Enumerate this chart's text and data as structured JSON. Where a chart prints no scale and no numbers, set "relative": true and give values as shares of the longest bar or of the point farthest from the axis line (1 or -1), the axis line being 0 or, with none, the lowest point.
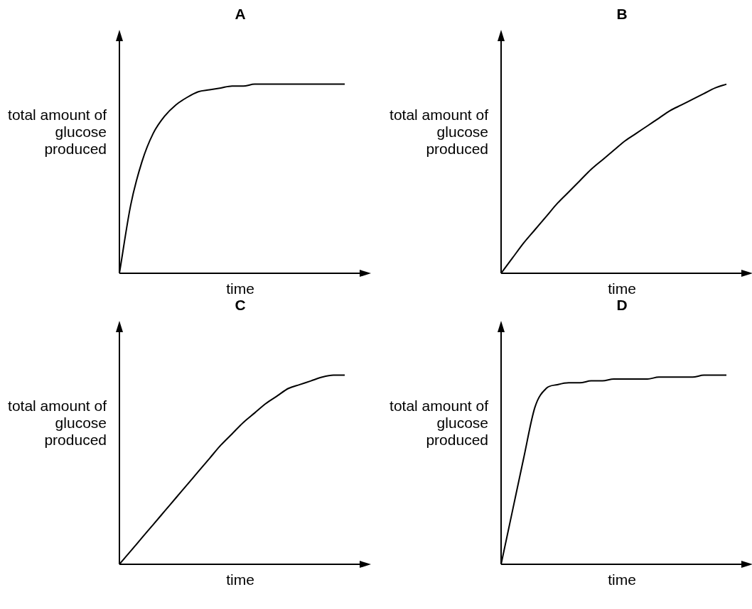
{
  "chart_data": [
    {
      "type": "line",
      "title": "A",
      "xlabel": "time",
      "ylabel": "total amount of glucose produced",
      "relative": true,
      "categories": [
        null,
        null,
        null,
        null,
        null,
        null,
        null,
        null,
        null,
        null,
        null,
        null,
        null,
        null,
        null,
        null,
        null,
        null,
        null,
        null,
        null
      ],
      "series": [
        {
          "color": "#000000",
          "values": [
            0,
            0.36,
            0.59,
            0.74,
            0.83,
            0.89,
            0.93,
            0.96,
            0.97,
            0.98,
            0.99,
            0.99,
            1,
            1,
            1,
            1,
            1,
            1,
            1,
            1,
            1
          ]
        }
      ]
    },
    {
      "type": "line",
      "title": "B",
      "xlabel": "time",
      "ylabel": "total amount of glucose produced",
      "relative": true,
      "categories": [
        null,
        null,
        null,
        null,
        null,
        null,
        null,
        null,
        null,
        null,
        null,
        null,
        null,
        null,
        null,
        null,
        null,
        null,
        null,
        null,
        null
      ],
      "series": [
        {
          "color": "#000000",
          "values": [
            0,
            0.08,
            0.16,
            0.23,
            0.3,
            0.37,
            0.43,
            0.49,
            0.55,
            0.6,
            0.65,
            0.7,
            0.74,
            0.78,
            0.82,
            0.86,
            0.89,
            0.92,
            0.95,
            0.98,
            1
          ]
        }
      ]
    },
    {
      "type": "line",
      "title": "C",
      "xlabel": "time",
      "ylabel": "total amount of glucose produced",
      "relative": true,
      "categories": [
        null,
        null,
        null,
        null,
        null,
        null,
        null,
        null,
        null,
        null,
        null,
        null,
        null,
        null,
        null,
        null,
        null,
        null,
        null,
        null,
        null
      ],
      "series": [
        {
          "color": "#000000",
          "values": [
            0,
            0.07,
            0.14,
            0.21,
            0.28,
            0.35,
            0.42,
            0.49,
            0.56,
            0.63,
            0.69,
            0.75,
            0.8,
            0.85,
            0.89,
            0.93,
            0.95,
            0.97,
            0.99,
            1,
            1
          ]
        }
      ]
    },
    {
      "type": "line",
      "title": "D",
      "xlabel": "time",
      "ylabel": "total amount of glucose produced",
      "relative": true,
      "categories": [
        null,
        null,
        null,
        null,
        null,
        null,
        null,
        null,
        null,
        null,
        null,
        null,
        null,
        null,
        null,
        null,
        null,
        null,
        null,
        null,
        null
      ],
      "series": [
        {
          "color": "#000000",
          "values": [
            0,
            0.28,
            0.56,
            0.83,
            0.93,
            0.95,
            0.96,
            0.96,
            0.97,
            0.97,
            0.98,
            0.98,
            0.98,
            0.98,
            0.99,
            0.99,
            0.99,
            0.99,
            1,
            1,
            1
          ]
        }
      ]
    }
  ]
}
